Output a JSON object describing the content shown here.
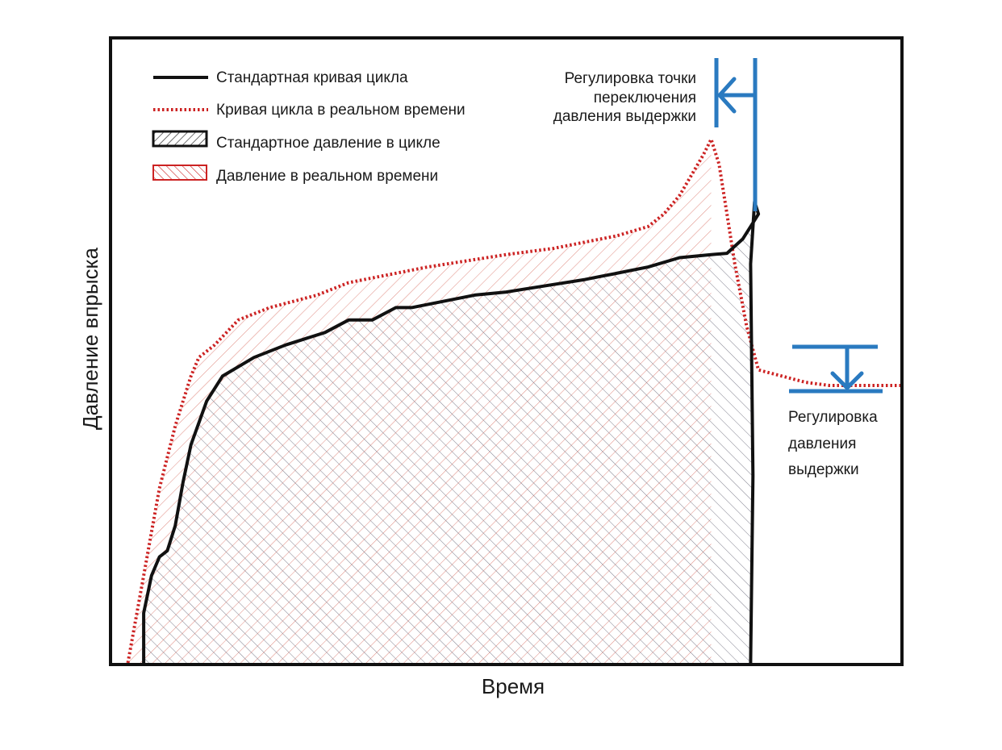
{
  "chart_data": {
    "type": "line",
    "xlabel": "Время",
    "ylabel": "Давление впрыска",
    "xlim": [
      0,
      100
    ],
    "ylim": [
      0,
      100
    ],
    "grid": false,
    "legend_position": "top-left",
    "legend": [
      {
        "label": "Стандартная кривая цикла",
        "marker": "solid-line"
      },
      {
        "label": "Кривая цикла в реальном времени",
        "marker": "dotted-line"
      },
      {
        "label": "Стандартное давление в цикле",
        "marker": "hatched-box"
      },
      {
        "label": "Давление в реальном времени",
        "marker": "hatched-box"
      }
    ],
    "series": [
      {
        "name": "Стандартная кривая цикла",
        "color": "#111111",
        "style": "solid",
        "points": [
          [
            4,
            0
          ],
          [
            4,
            8
          ],
          [
            5,
            14
          ],
          [
            6,
            17
          ],
          [
            7,
            18
          ],
          [
            8,
            22
          ],
          [
            9,
            29
          ],
          [
            10,
            35
          ],
          [
            12,
            42
          ],
          [
            14,
            46
          ],
          [
            18,
            49
          ],
          [
            22,
            51
          ],
          [
            27,
            53
          ],
          [
            30,
            55
          ],
          [
            33,
            55
          ],
          [
            36,
            57
          ],
          [
            38,
            57
          ],
          [
            42,
            58
          ],
          [
            46,
            59
          ],
          [
            50,
            59.5
          ],
          [
            55,
            60.5
          ],
          [
            60,
            61.5
          ],
          [
            62,
            62
          ],
          [
            64,
            62.5
          ],
          [
            68,
            63.5
          ],
          [
            72,
            65
          ],
          [
            76,
            65.5
          ],
          [
            78,
            65.7
          ],
          [
            80,
            68
          ],
          [
            81,
            70
          ],
          [
            82,
            72
          ],
          [
            81.5,
            74
          ],
          [
            81,
            64
          ],
          [
            81.3,
            30
          ],
          [
            81,
            0
          ]
        ]
      },
      {
        "name": "Кривая цикла в реальном времени",
        "color": "#cc2222",
        "style": "dotted",
        "points": [
          [
            2,
            0
          ],
          [
            3,
            7
          ],
          [
            4,
            14
          ],
          [
            5,
            21
          ],
          [
            6,
            28
          ],
          [
            7,
            33
          ],
          [
            8,
            38
          ],
          [
            9,
            42
          ],
          [
            10,
            46
          ],
          [
            11,
            49
          ],
          [
            13,
            51
          ],
          [
            16,
            55
          ],
          [
            20,
            57
          ],
          [
            26,
            59
          ],
          [
            30,
            61
          ],
          [
            34,
            62
          ],
          [
            40,
            63.5
          ],
          [
            45,
            64.5
          ],
          [
            50,
            65.5
          ],
          [
            56,
            66.5
          ],
          [
            60,
            67.5
          ],
          [
            64,
            68.5
          ],
          [
            68,
            70
          ],
          [
            70,
            72
          ],
          [
            72,
            75
          ],
          [
            75,
            81.5
          ],
          [
            76,
            84
          ],
          [
            77,
            80
          ],
          [
            78,
            72
          ],
          [
            79,
            64
          ],
          [
            80.5,
            54
          ],
          [
            82,
            47
          ],
          [
            85,
            46
          ],
          [
            88,
            45
          ],
          [
            91,
            44.5
          ],
          [
            94,
            44.5
          ],
          [
            96,
            44.5
          ],
          [
            100,
            44.5
          ]
        ]
      }
    ],
    "areas": [
      {
        "name": "Стандартное давление в цикле",
        "from_x": 4,
        "to_x": 81
      },
      {
        "name": "Давление в реальном времени",
        "from_x": 2,
        "to_x": 76
      }
    ],
    "annotations": {
      "switchover": {
        "lines": [
          "Регулировка точки",
          "переключения",
          "давления выдержки"
        ],
        "color": "#2a7ac0"
      },
      "hold": {
        "lines": [
          "Регулировка",
          "давления",
          "выдержки"
        ],
        "color": "#2a7ac0"
      }
    }
  }
}
